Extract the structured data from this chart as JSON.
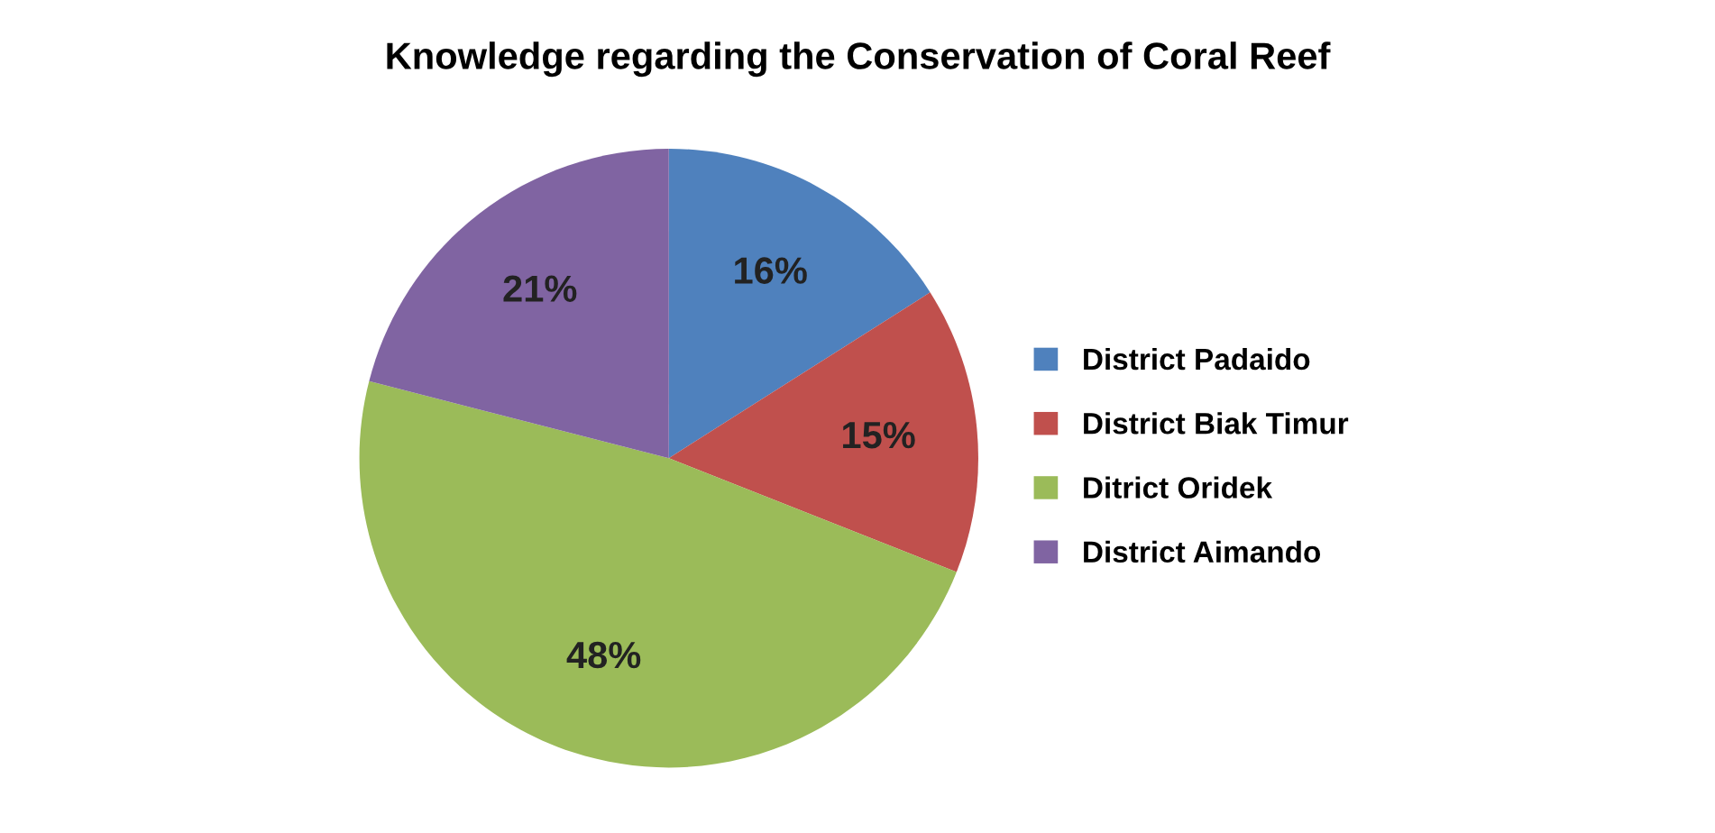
{
  "chart_data": {
    "type": "pie",
    "title": "Knowledge regarding the Conservation of Coral Reef",
    "categories": [
      "District Padaido",
      "District Biak Timur",
      "Ditrict Oridek",
      "District Aimando"
    ],
    "values": [
      16,
      15,
      48,
      21
    ],
    "colors": [
      "#4f81bd",
      "#c0504d",
      "#9bbb59",
      "#8064a2"
    ],
    "value_labels": [
      "16%",
      "15%",
      "48%",
      "21%"
    ],
    "legend": "right"
  }
}
